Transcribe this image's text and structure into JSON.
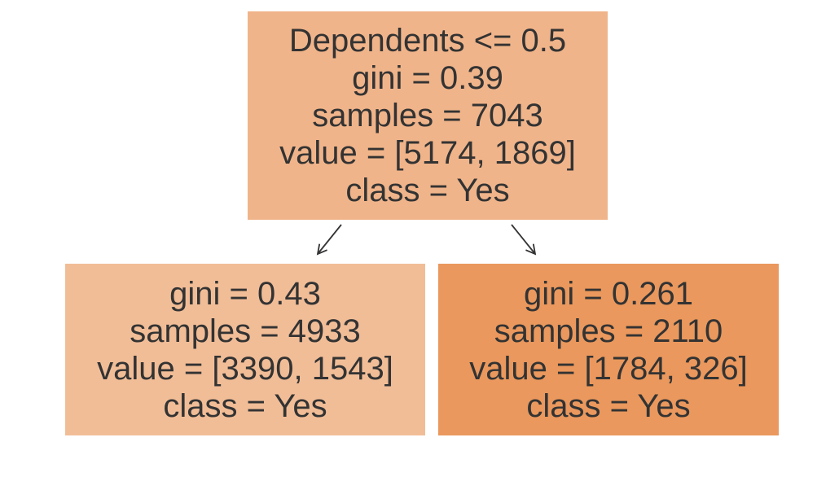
{
  "tree": {
    "root": {
      "lines": [
        "Dependents <= 0.5",
        "gini = 0.39",
        "samples = 7043",
        "value = [5174, 1869]",
        "class = Yes"
      ],
      "color": "#f0b48a"
    },
    "left": {
      "lines": [
        "gini = 0.43",
        "samples = 4933",
        "value = [3390, 1543]",
        "class = Yes"
      ],
      "color": "#f1bd97"
    },
    "right": {
      "lines": [
        "gini = 0.261",
        "samples = 2110",
        "value = [1784, 326]",
        "class = Yes"
      ],
      "color": "#ea985d"
    }
  },
  "colors": {
    "text": "#333333",
    "edge": "#333333"
  }
}
